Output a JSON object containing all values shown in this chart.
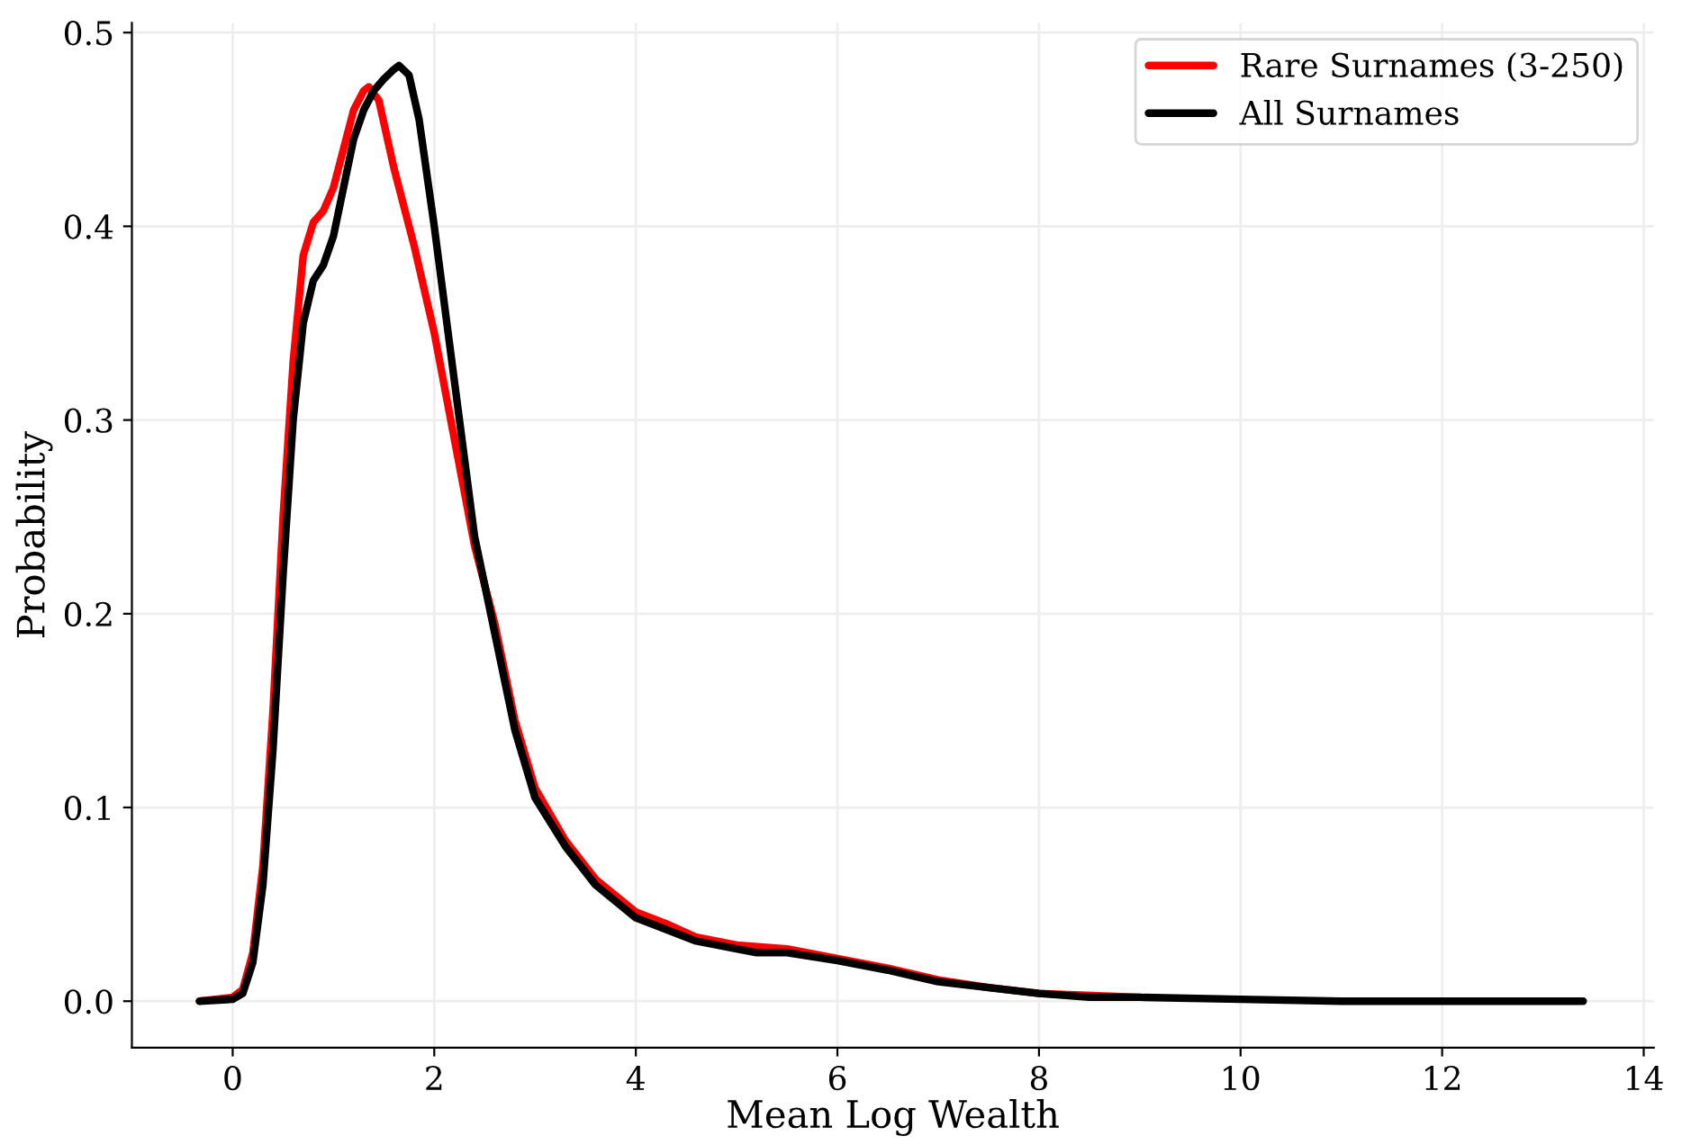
{
  "chart_data": {
    "type": "line",
    "xlabel": "Mean Log Wealth",
    "ylabel": "Probability",
    "xlim": [
      -1.0,
      14.1
    ],
    "ylim": [
      -0.024,
      0.505
    ],
    "xticks": [
      0,
      2,
      4,
      6,
      8,
      10,
      12,
      14
    ],
    "yticks": [
      {
        "value": 0.0,
        "label": "0.0"
      },
      0.1,
      0.2,
      0.3,
      0.4,
      0.5
    ],
    "grid": true,
    "legend": "top right",
    "marker": "none",
    "line_style": "solid",
    "series": [
      {
        "name": "Rare Surnames (3-250)",
        "color": "#ff0000",
        "x": [
          -0.33,
          0.0,
          0.1,
          0.2,
          0.3,
          0.4,
          0.5,
          0.6,
          0.7,
          0.8,
          0.9,
          1.0,
          1.1,
          1.2,
          1.3,
          1.35,
          1.45,
          1.6,
          1.8,
          2.0,
          2.2,
          2.4,
          2.6,
          2.8,
          3.0,
          3.3,
          3.6,
          4.0,
          4.3,
          4.6,
          5.0,
          5.5,
          6.0,
          6.5,
          7.0,
          7.5,
          8.0,
          9.0
        ],
        "values": [
          0.0,
          0.002,
          0.006,
          0.025,
          0.07,
          0.15,
          0.25,
          0.33,
          0.385,
          0.402,
          0.408,
          0.42,
          0.44,
          0.46,
          0.47,
          0.472,
          0.465,
          0.43,
          0.39,
          0.345,
          0.29,
          0.235,
          0.195,
          0.145,
          0.11,
          0.083,
          0.063,
          0.046,
          0.04,
          0.033,
          0.029,
          0.027,
          0.022,
          0.017,
          0.011,
          0.007,
          0.004,
          0.002
        ]
      },
      {
        "name": "All Surnames",
        "color": "#000000",
        "x": [
          -0.33,
          0.0,
          0.1,
          0.2,
          0.3,
          0.4,
          0.5,
          0.6,
          0.7,
          0.8,
          0.9,
          1.0,
          1.1,
          1.2,
          1.3,
          1.4,
          1.5,
          1.6,
          1.65,
          1.75,
          1.85,
          2.0,
          2.2,
          2.4,
          2.6,
          2.8,
          3.0,
          3.3,
          3.6,
          4.0,
          4.3,
          4.6,
          5.0,
          5.2,
          5.5,
          6.0,
          6.5,
          7.0,
          7.5,
          8.0,
          8.5,
          9.0,
          10.0,
          11.0,
          12.0,
          13.4
        ],
        "values": [
          0.0,
          0.001,
          0.004,
          0.02,
          0.06,
          0.13,
          0.22,
          0.3,
          0.35,
          0.372,
          0.38,
          0.395,
          0.42,
          0.445,
          0.46,
          0.47,
          0.476,
          0.481,
          0.483,
          0.478,
          0.455,
          0.4,
          0.32,
          0.24,
          0.19,
          0.14,
          0.105,
          0.08,
          0.06,
          0.043,
          0.037,
          0.031,
          0.027,
          0.025,
          0.025,
          0.021,
          0.016,
          0.01,
          0.007,
          0.004,
          0.002,
          0.002,
          0.001,
          0.0,
          0.0,
          0.0
        ]
      }
    ]
  }
}
